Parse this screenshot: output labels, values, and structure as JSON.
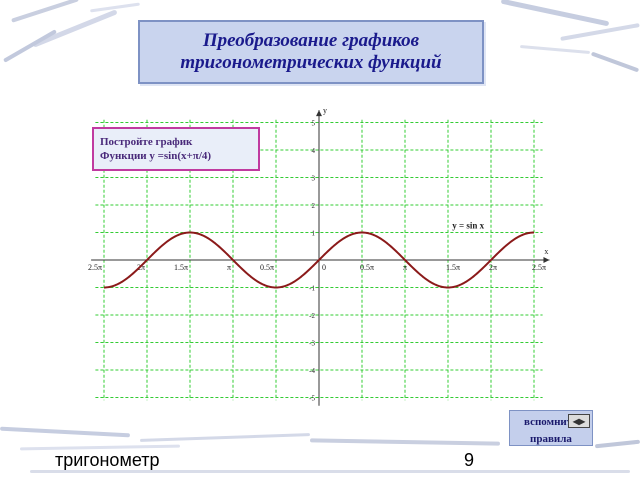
{
  "title": {
    "line1": "Преобразование графиков",
    "line2": "тригонометрических функций"
  },
  "task": {
    "line1": "Постройте график",
    "line2": "Функции у =sin(x+π/4)"
  },
  "remind_button": {
    "line1": "вспомнить",
    "line2": "правила",
    "icon": "nav-icon"
  },
  "footer": {
    "text": "тригонометр",
    "page_number": "9"
  },
  "colors": {
    "title_bg": "#c9d4ee",
    "title_text": "#1a1a8c",
    "curve": "#8b1a1a",
    "grid": "#33cc33",
    "task_border": "#c03aa0"
  },
  "chart_data": {
    "type": "line",
    "function": "y = sin x",
    "series": [
      {
        "name": "y = sin x",
        "x_start": -2.5,
        "x_end": 2.5,
        "x_unit": "π"
      }
    ],
    "x_tick_labels": [
      "2.5π",
      "2π",
      "1.5π",
      "π",
      "0.5π",
      "0",
      "0.5π",
      "π",
      "1.5π",
      "2π",
      "2.5π"
    ],
    "x_ticks": [
      -2.5,
      -2,
      -1.5,
      -1,
      -0.5,
      0,
      0.5,
      1,
      1.5,
      2,
      2.5
    ],
    "y_tick_labels": [
      "5",
      "4",
      "3",
      "2",
      "1",
      "-1",
      "-2",
      "-3",
      "-4",
      "-5"
    ],
    "y_ticks": [
      5,
      4,
      3,
      2,
      1,
      -1,
      -2,
      -3,
      -4,
      -5
    ],
    "xlabel": "x",
    "ylabel": "y",
    "xlim": [
      -2.5,
      2.5
    ],
    "ylim": [
      -5,
      5
    ],
    "grid": true
  }
}
